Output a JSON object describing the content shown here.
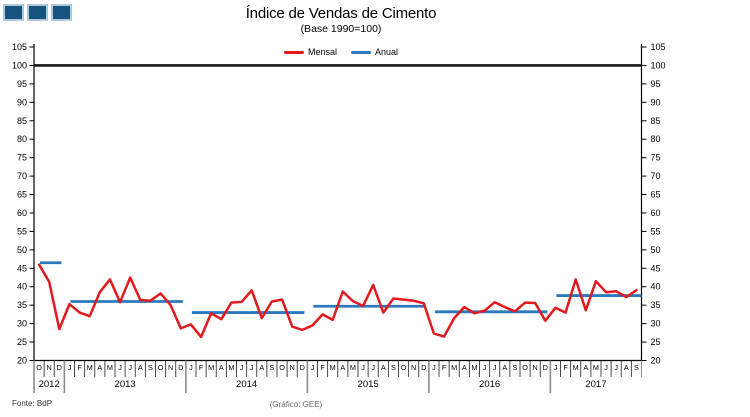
{
  "header": {
    "title": "Índice de Vendas de Cimento",
    "subtitle": "(Base 1990=100)"
  },
  "footer": {
    "source": "Fonte: BdP",
    "credit": "(Gráfico: GEE)"
  },
  "colors": {
    "monthly_line": "#e01a1e",
    "annual_line": "#2b7abd",
    "reference_line": "#1a1a1a",
    "logo_square_fill": "#15547f",
    "logo_square_border": "#b3c8d6",
    "year_separator": "#8c8c8c",
    "month_separator": "#333333"
  },
  "chart_data": {
    "type": "line",
    "title": "Índice de Vendas de Cimento",
    "subtitle": "(Base 1990=100)",
    "xlabel": "",
    "ylabel": "",
    "ylim": [
      20,
      105
    ],
    "grid": false,
    "legend_position": "top-center",
    "reference_line": 100,
    "y_ticks": [
      105,
      100,
      95,
      90,
      85,
      80,
      75,
      70,
      65,
      60,
      55,
      50,
      45,
      40,
      35,
      30,
      25,
      20
    ],
    "month_labels": [
      "O",
      "N",
      "D",
      "J",
      "F",
      "M",
      "A",
      "M",
      "J",
      "J",
      "A",
      "S",
      "O",
      "N",
      "D",
      "J",
      "F",
      "M",
      "A",
      "M",
      "J",
      "J",
      "A",
      "S",
      "O",
      "N",
      "D",
      "J",
      "F",
      "M",
      "A",
      "M",
      "J",
      "J",
      "A",
      "S",
      "O",
      "N",
      "D",
      "J",
      "F",
      "M",
      "A",
      "M",
      "J",
      "J",
      "A",
      "S",
      "O",
      "N",
      "D",
      "J",
      "F",
      "M",
      "A",
      "M",
      "J",
      "J",
      "A",
      "S"
    ],
    "years": [
      {
        "label": "2012",
        "months": 3
      },
      {
        "label": "2013",
        "months": 12
      },
      {
        "label": "2014",
        "months": 12
      },
      {
        "label": "2015",
        "months": 12
      },
      {
        "label": "2016",
        "months": 12
      },
      {
        "label": "2017",
        "months": 9
      }
    ],
    "series": [
      {
        "name": "Mensal",
        "type": "monthly-line",
        "color": "#e01a1e",
        "values": [
          46.0,
          41.3,
          28.5,
          35.3,
          33.0,
          32.0,
          38.5,
          42.0,
          35.8,
          42.5,
          36.4,
          36.2,
          38.2,
          35.0,
          28.7,
          29.8,
          26.4,
          32.8,
          31.2,
          35.7,
          35.9,
          39.0,
          31.5,
          36.0,
          36.5,
          29.2,
          28.3,
          29.5,
          32.5,
          31.0,
          38.7,
          36.1,
          34.8,
          40.5,
          33.0,
          36.8,
          36.5,
          36.2,
          35.5,
          27.3,
          26.5,
          31.5,
          34.5,
          32.8,
          33.5,
          35.8,
          34.5,
          33.3,
          35.7,
          35.6,
          30.8,
          34.3,
          33.0,
          42.0,
          33.6,
          41.5,
          38.5,
          38.8,
          37.2,
          39.1
        ]
      },
      {
        "name": "Anual",
        "type": "yearly-mean-segments",
        "color": "#2b7abd",
        "values": [
          46.5,
          36.0,
          33.0,
          34.7,
          33.2,
          37.6
        ]
      }
    ]
  }
}
